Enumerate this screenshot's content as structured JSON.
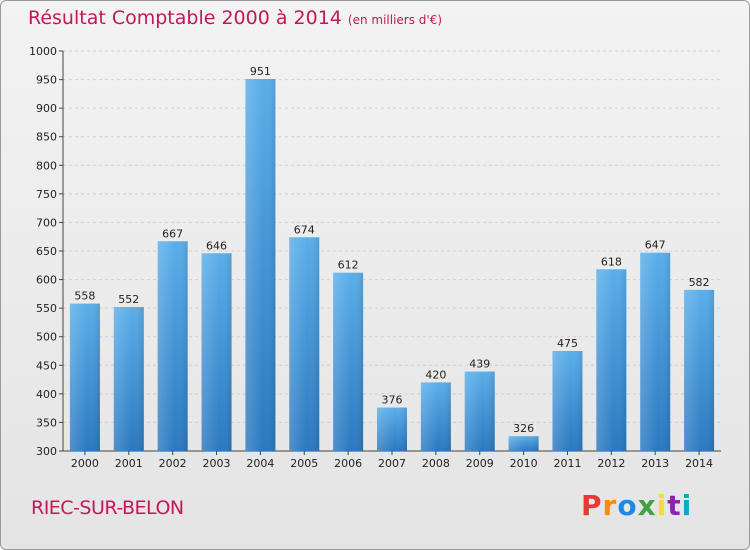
{
  "title": "Résultat Comptable 2000 à 2014",
  "subtitle": "(en milliers d'€)",
  "commune": "RIEC-SUR-BELON",
  "brand": {
    "letters": [
      "P",
      "r",
      "o",
      "x",
      "i",
      "t",
      "i"
    ],
    "colors": [
      "#e53935",
      "#fb8c00",
      "#1e88e5",
      "#43a047",
      "#fdd835",
      "#8e24aa",
      "#00acc1"
    ]
  },
  "colors": {
    "bar_top": "#5aaeea",
    "bar_bottom": "#2a78c0",
    "title": "#c2185b"
  },
  "chart_data": {
    "type": "bar",
    "title": "Résultat Comptable 2000 à 2014",
    "subtitle": "(en milliers d'€)",
    "categories": [
      "2000",
      "2001",
      "2002",
      "2003",
      "2004",
      "2005",
      "2006",
      "2007",
      "2008",
      "2009",
      "2010",
      "2011",
      "2012",
      "2013",
      "2014"
    ],
    "values": [
      558,
      552,
      667,
      646,
      951,
      674,
      612,
      376,
      420,
      439,
      326,
      475,
      618,
      647,
      582
    ],
    "ylim": [
      300,
      1000
    ],
    "yticks": [
      300,
      350,
      400,
      450,
      500,
      550,
      600,
      650,
      700,
      750,
      800,
      850,
      900,
      950,
      1000
    ],
    "grid": true,
    "xlabel": "",
    "ylabel": ""
  }
}
